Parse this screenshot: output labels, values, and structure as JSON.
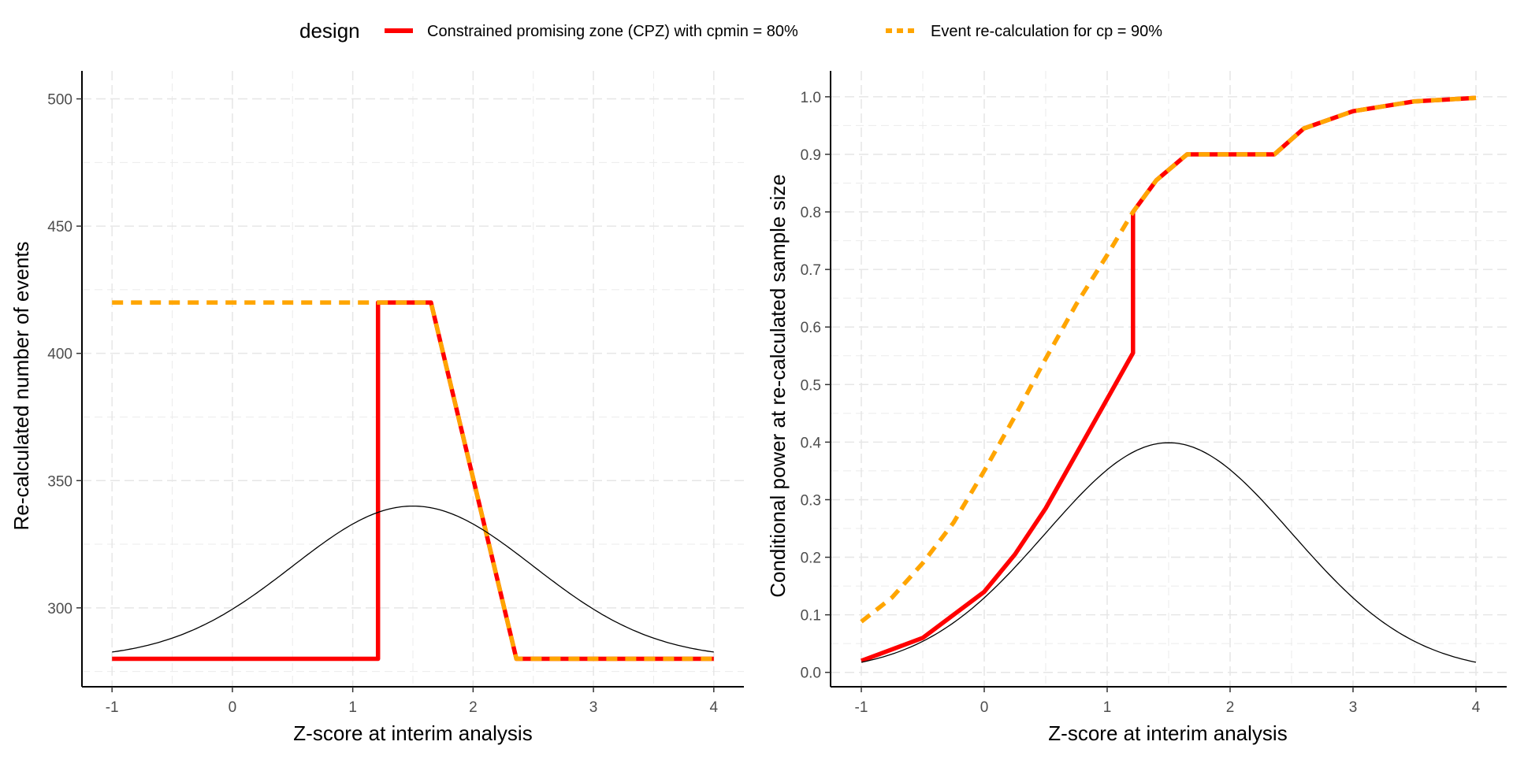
{
  "legend": {
    "title": "design",
    "items": [
      {
        "label": "Constrained promising zone (CPZ) with cpmin = 80%",
        "color": "#ff0000",
        "style": "solid"
      },
      {
        "label": "Event re-calculation for cp = 90%",
        "color": "#ffa500",
        "style": "dashed"
      }
    ],
    "placement": "top"
  },
  "chart_data": [
    {
      "type": "line",
      "panel": "left",
      "xlabel": "Z-score at interim analysis",
      "ylabel": "Re-calculated number of events",
      "xlim": [
        -1.25,
        4.25
      ],
      "ylim": [
        269,
        511
      ],
      "xticks": [
        -1,
        0,
        1,
        2,
        3,
        4
      ],
      "xtick_labels": [
        "-1",
        "0",
        "1",
        "2",
        "3",
        "4"
      ],
      "yticks": [
        300,
        350,
        400,
        450,
        500
      ],
      "ytick_labels": [
        "300",
        "350",
        "400",
        "450",
        "500"
      ],
      "grid": true,
      "series": [
        {
          "name": "Constrained promising zone (CPZ) with cpmin = 80%",
          "color": "#ff0000",
          "style": "solid",
          "x": [
            -1,
            1.21,
            1.21,
            1.65,
            2.36,
            4
          ],
          "y": [
            280,
            280,
            420,
            420,
            280,
            280
          ]
        },
        {
          "name": "Event re-calculation for cp = 90%",
          "color": "#ffa500",
          "style": "dashed",
          "x": [
            -1,
            1.65,
            2.36,
            4
          ],
          "y": [
            420,
            420,
            280,
            280
          ]
        },
        {
          "name": "Density (scaled normal, mean 1.5)",
          "color": "#000000",
          "style": "thin",
          "function": "normal_density",
          "mean": 1.5,
          "sd": 1,
          "offset": 280,
          "scale": 150.4
        }
      ]
    },
    {
      "type": "line",
      "panel": "right",
      "xlabel": "Z-score at interim analysis",
      "ylabel": "Conditional power at re-calculated sample size",
      "xlim": [
        -1.25,
        4.25
      ],
      "ylim": [
        -0.025,
        1.045
      ],
      "xticks": [
        -1,
        0,
        1,
        2,
        3,
        4
      ],
      "xtick_labels": [
        "-1",
        "0",
        "1",
        "2",
        "3",
        "4"
      ],
      "yticks": [
        0.0,
        0.1,
        0.2,
        0.3,
        0.4,
        0.5,
        0.6,
        0.7,
        0.8,
        0.9,
        1.0
      ],
      "ytick_labels": [
        "0.0",
        "0.1",
        "0.2",
        "0.3",
        "0.4",
        "0.5",
        "0.6",
        "0.7",
        "0.8",
        "0.9",
        "1.0"
      ],
      "grid": true,
      "series": [
        {
          "name": "Constrained promising zone (CPZ) with cpmin = 80%",
          "color": "#ff0000",
          "style": "solid",
          "x": [
            -1,
            -0.5,
            0,
            0.25,
            0.5,
            0.75,
            1.0,
            1.21,
            1.21,
            1.4,
            1.65,
            2.0,
            2.36,
            2.6,
            3.0,
            3.5,
            4.0
          ],
          "y": [
            0.02,
            0.06,
            0.14,
            0.205,
            0.285,
            0.38,
            0.475,
            0.555,
            0.8,
            0.855,
            0.9,
            0.9,
            0.9,
            0.945,
            0.975,
            0.992,
            0.998
          ]
        },
        {
          "name": "Event re-calculation for cp = 90%",
          "color": "#ffa500",
          "style": "dashed",
          "x": [
            -1,
            -0.75,
            -0.5,
            -0.25,
            0,
            0.25,
            0.5,
            0.75,
            1.0,
            1.21,
            1.4,
            1.65,
            2.0,
            2.36,
            2.6,
            3.0,
            3.5,
            4.0
          ],
          "y": [
            0.088,
            0.13,
            0.19,
            0.26,
            0.35,
            0.445,
            0.545,
            0.64,
            0.725,
            0.8,
            0.855,
            0.9,
            0.9,
            0.9,
            0.945,
            0.975,
            0.992,
            0.998
          ]
        },
        {
          "name": "Density (normal, mean 1.5)",
          "color": "#000000",
          "style": "thin",
          "function": "normal_density",
          "mean": 1.5,
          "sd": 1,
          "offset": 0,
          "scale": 1.0
        }
      ]
    }
  ]
}
